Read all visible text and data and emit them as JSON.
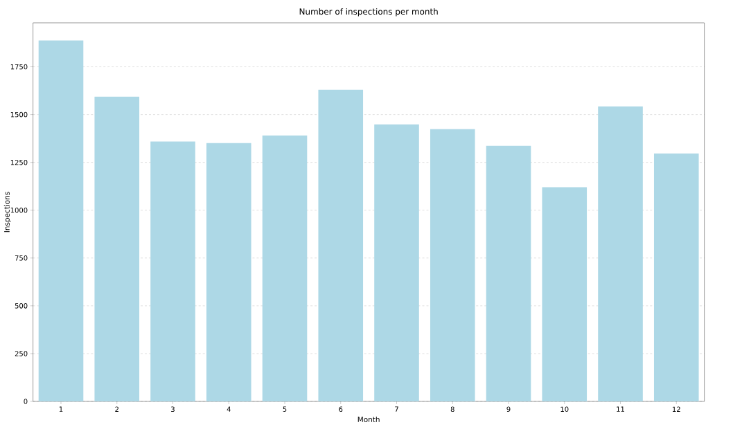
{
  "chart_data": {
    "type": "bar",
    "title": "Number of inspections per month",
    "xlabel": "Month",
    "ylabel": "Inspections",
    "categories": [
      "1",
      "2",
      "3",
      "4",
      "5",
      "6",
      "7",
      "8",
      "9",
      "10",
      "11",
      "12"
    ],
    "values": [
      1888,
      1594,
      1359,
      1351,
      1391,
      1630,
      1449,
      1424,
      1337,
      1120,
      1543,
      1297
    ],
    "color": "#add8e6",
    "ylim": [
      0,
      1980
    ],
    "yticks": [
      0,
      250,
      500,
      750,
      1000,
      1250,
      1500,
      1750
    ],
    "grid": "y"
  }
}
